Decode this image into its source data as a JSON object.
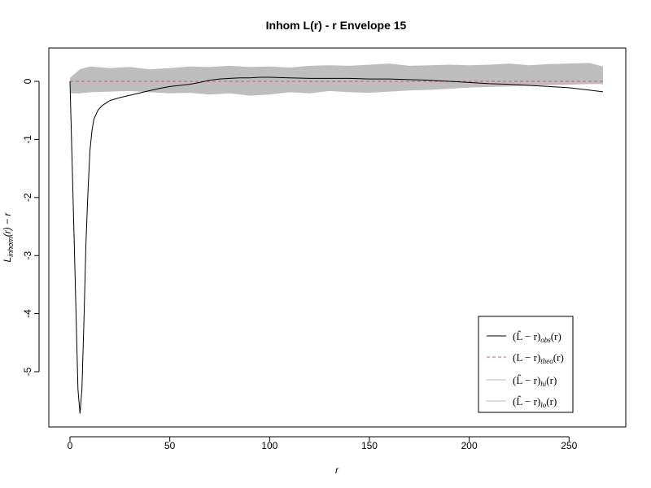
{
  "chart_data": {
    "type": "line",
    "title": "Inhom L(r) - r Envelope 15",
    "xlabel": "r",
    "ylabel_main": "L",
    "ylabel_sub": "inhom",
    "ylabel_rest": "(r) − r",
    "xlim": [
      0,
      270
    ],
    "ylim": [
      -5.8,
      0.5
    ],
    "xticks": [
      0,
      50,
      100,
      150,
      200,
      250
    ],
    "yticks": [
      0,
      -1,
      -2,
      -3,
      -4,
      -5
    ],
    "grid": false,
    "legend_position": "bottom-right",
    "colors": {
      "obs": "#000000",
      "theo": "#df536b",
      "envelope": "#bebebe",
      "axis": "#000000"
    },
    "series": [
      {
        "name": "obs",
        "label_main": "(L̂ − r)",
        "label_sub": "obs",
        "label_tail": "(r)",
        "style": "solid",
        "x": [
          0,
          2,
          4,
          5,
          6,
          7,
          8,
          9,
          10,
          11,
          12,
          14,
          16,
          20,
          25,
          30,
          35,
          40,
          45,
          50,
          55,
          60,
          65,
          70,
          75,
          80,
          85,
          90,
          95,
          100,
          110,
          120,
          130,
          140,
          150,
          160,
          170,
          180,
          190,
          200,
          210,
          220,
          230,
          240,
          250,
          260,
          267
        ],
        "y": [
          0,
          -2.6,
          -5.3,
          -5.72,
          -5.3,
          -4.1,
          -2.8,
          -1.9,
          -1.2,
          -0.85,
          -0.65,
          -0.5,
          -0.42,
          -0.33,
          -0.28,
          -0.24,
          -0.2,
          -0.16,
          -0.12,
          -0.09,
          -0.07,
          -0.05,
          -0.02,
          0.02,
          0.04,
          0.05,
          0.06,
          0.06,
          0.07,
          0.07,
          0.06,
          0.05,
          0.05,
          0.05,
          0.04,
          0.04,
          0.03,
          0.02,
          0.0,
          -0.02,
          -0.04,
          -0.05,
          -0.07,
          -0.09,
          -0.11,
          -0.15,
          -0.18
        ]
      },
      {
        "name": "theo",
        "label_main": "(L − r)",
        "label_sub": "theo",
        "label_tail": "(r)",
        "style": "dashed",
        "x": [
          0,
          267
        ],
        "y": [
          0,
          0
        ]
      },
      {
        "name": "hi",
        "label_main": "(L̂ − r)",
        "label_sub": "hi",
        "label_tail": "(r)",
        "style": "solid",
        "x": [
          0,
          5,
          10,
          20,
          30,
          40,
          50,
          60,
          70,
          80,
          90,
          100,
          110,
          120,
          130,
          140,
          150,
          160,
          170,
          180,
          190,
          200,
          210,
          220,
          230,
          240,
          250,
          260,
          267
        ],
        "y": [
          0.05,
          0.2,
          0.25,
          0.22,
          0.24,
          0.2,
          0.22,
          0.25,
          0.24,
          0.26,
          0.24,
          0.25,
          0.23,
          0.26,
          0.27,
          0.26,
          0.28,
          0.3,
          0.26,
          0.27,
          0.28,
          0.27,
          0.28,
          0.3,
          0.27,
          0.29,
          0.3,
          0.31,
          0.25
        ]
      },
      {
        "name": "lo",
        "label_main": "(L̂ − r)",
        "label_sub": "lo",
        "label_tail": "(r)",
        "style": "solid",
        "x": [
          0,
          5,
          10,
          20,
          30,
          40,
          50,
          60,
          70,
          80,
          90,
          100,
          110,
          120,
          130,
          140,
          150,
          160,
          170,
          180,
          190,
          200,
          210,
          220,
          230,
          240,
          250,
          260,
          267
        ],
        "y": [
          -0.2,
          -0.2,
          -0.18,
          -0.17,
          -0.16,
          -0.18,
          -0.2,
          -0.19,
          -0.22,
          -0.2,
          -0.24,
          -0.22,
          -0.18,
          -0.2,
          -0.16,
          -0.18,
          -0.19,
          -0.17,
          -0.15,
          -0.14,
          -0.12,
          -0.1,
          -0.09,
          -0.08,
          -0.07,
          -0.06,
          -0.05,
          -0.04,
          -0.04
        ]
      }
    ]
  }
}
